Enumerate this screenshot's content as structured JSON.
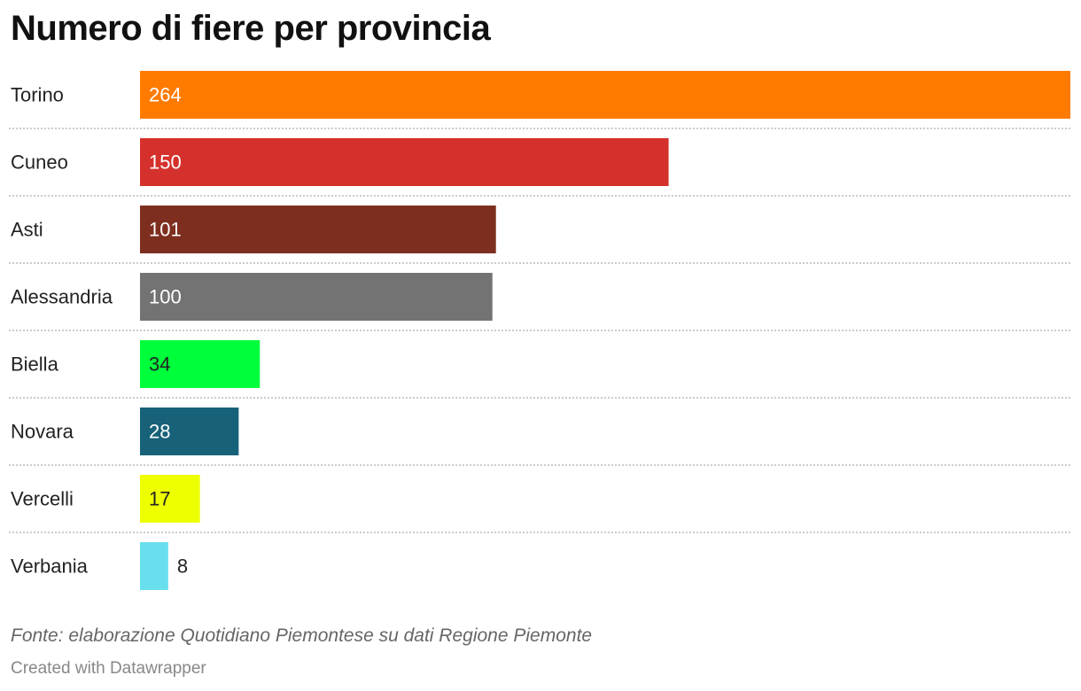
{
  "chart_data": {
    "type": "bar",
    "orientation": "horizontal",
    "title": "Numero di fiere per provincia",
    "categories": [
      "Torino",
      "Cuneo",
      "Asti",
      "Alessandria",
      "Biella",
      "Novara",
      "Vercelli",
      "Verbania"
    ],
    "values": [
      264,
      150,
      101,
      100,
      34,
      28,
      17,
      8
    ],
    "value_labels": [
      "264",
      "150",
      "101",
      "100",
      "34",
      "28",
      "17",
      "8"
    ],
    "colors": [
      "#ff7b00",
      "#d5312c",
      "#7e2e1f",
      "#737373",
      "#00ff3b",
      "#176179",
      "#eeff00",
      "#68dfee"
    ],
    "label_colors": [
      "#ffffff",
      "#ffffff",
      "#ffffff",
      "#ffffff",
      "#222222",
      "#ffffff",
      "#222222",
      "#222222"
    ],
    "xlim": [
      0,
      264
    ],
    "grid": false,
    "row_separators": "dotted",
    "source": "Fonte: elaborazione Quotidiano Piemontese su dati Regione Piemonte",
    "credit": "Created with Datawrapper"
  }
}
